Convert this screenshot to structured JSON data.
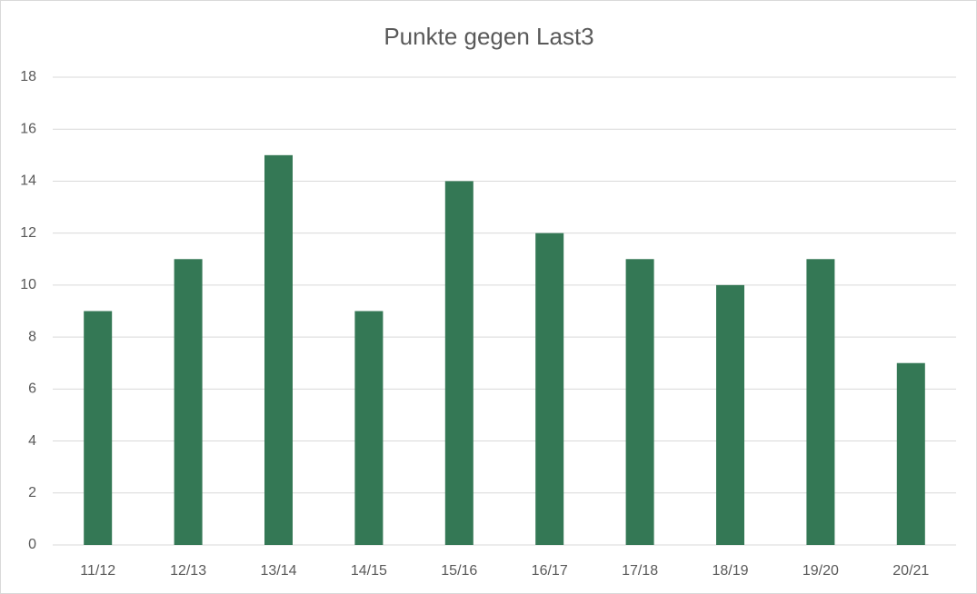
{
  "chart_data": {
    "type": "bar",
    "title": "Punkte gegen Last3",
    "categories": [
      "11/12",
      "12/13",
      "13/14",
      "14/15",
      "15/16",
      "16/17",
      "17/18",
      "18/19",
      "19/20",
      "20/21"
    ],
    "values": [
      9,
      11,
      15,
      9,
      14,
      12,
      11,
      10,
      11,
      7
    ],
    "color": "#347855",
    "ylim": [
      0,
      18
    ],
    "yticks": [
      0,
      2,
      4,
      6,
      8,
      10,
      12,
      14,
      16,
      18
    ],
    "grid": true
  }
}
